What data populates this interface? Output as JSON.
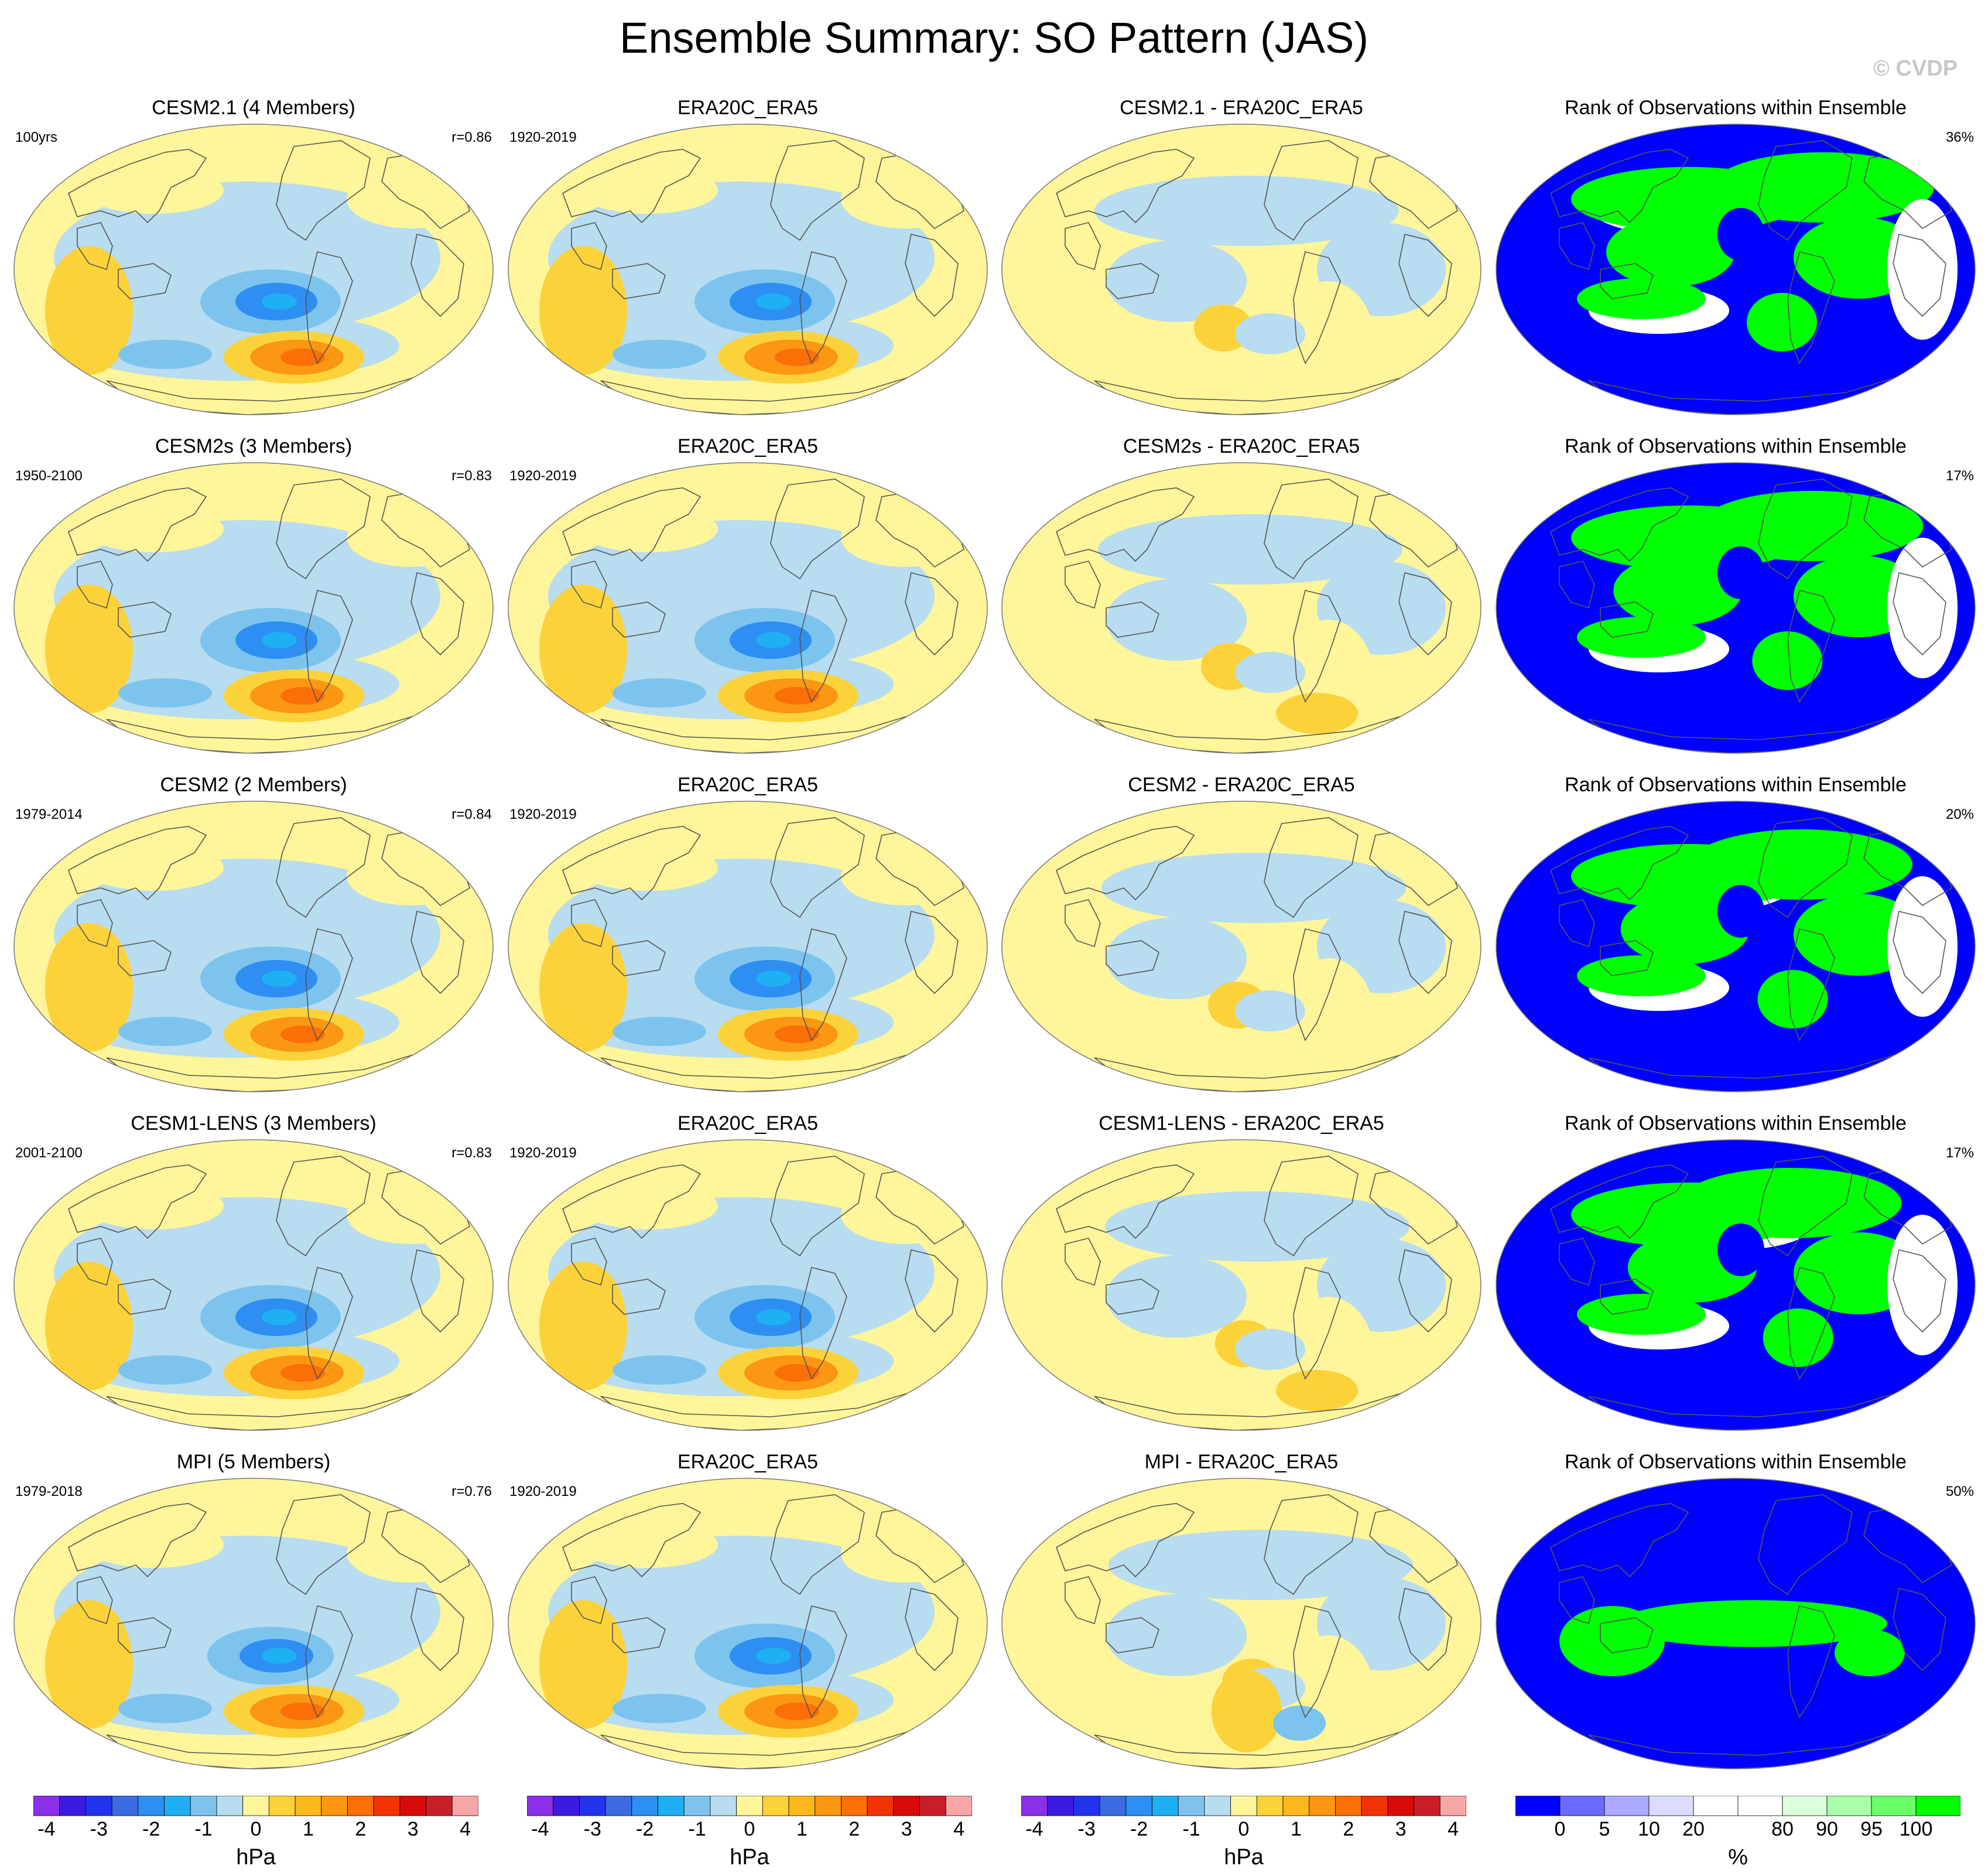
{
  "title": "Ensemble Summary: SO Pattern (JAS)",
  "copyright": "© CVDP",
  "rows": [
    {
      "model": {
        "title": "CESM2.1 (4 Members)",
        "left": "100yrs",
        "right": "r=0.86"
      },
      "obs": {
        "title": "ERA20C_ERA5",
        "left": "1920-2019"
      },
      "diff": {
        "title": "CESM2.1 - ERA20C_ERA5"
      },
      "rank": {
        "title": "Rank of Observations within Ensemble",
        "right": "36%"
      }
    },
    {
      "model": {
        "title": "CESM2s (3 Members)",
        "left": "1950-2100",
        "right": "r=0.83"
      },
      "obs": {
        "title": "ERA20C_ERA5",
        "left": "1920-2019"
      },
      "diff": {
        "title": "CESM2s - ERA20C_ERA5"
      },
      "rank": {
        "title": "Rank of Observations within Ensemble",
        "right": "17%"
      }
    },
    {
      "model": {
        "title": "CESM2 (2 Members)",
        "left": "1979-2014",
        "right": "r=0.84"
      },
      "obs": {
        "title": "ERA20C_ERA5",
        "left": "1920-2019"
      },
      "diff": {
        "title": "CESM2 - ERA20C_ERA5"
      },
      "rank": {
        "title": "Rank of Observations within Ensemble",
        "right": "20%"
      }
    },
    {
      "model": {
        "title": "CESM1-LENS (3 Members)",
        "left": "2001-2100",
        "right": "r=0.83"
      },
      "obs": {
        "title": "ERA20C_ERA5",
        "left": "1920-2019"
      },
      "diff": {
        "title": "CESM1-LENS - ERA20C_ERA5"
      },
      "rank": {
        "title": "Rank of Observations within Ensemble",
        "right": "17%"
      }
    },
    {
      "model": {
        "title": "MPI (5 Members)",
        "left": "1979-2018",
        "right": "r=0.76"
      },
      "obs": {
        "title": "ERA20C_ERA5",
        "left": "1920-2019"
      },
      "diff": {
        "title": "MPI - ERA20C_ERA5"
      },
      "rank": {
        "title": "Rank of Observations within Ensemble",
        "right": "50%"
      }
    }
  ],
  "colorbars": {
    "hpa": {
      "units": "hPa",
      "colors": [
        "#8c2fe8",
        "#3c1ae0",
        "#2233ee",
        "#3c6ae0",
        "#2e8ef2",
        "#1eb0f2",
        "#7cc4ee",
        "#b8dcf0",
        "#fff59a",
        "#fcd23a",
        "#fbb81c",
        "#fb9712",
        "#fb6e08",
        "#f43206",
        "#da0a0a",
        "#c81e28",
        "#f7a6a6"
      ],
      "ticks": [
        "-4",
        "-3",
        "-2",
        "-1",
        "0",
        "1",
        "2",
        "3",
        "4"
      ]
    },
    "rank": {
      "units": "%",
      "colors": [
        "#0000ff",
        "#6a6aff",
        "#aaaaff",
        "#dcdcff",
        "#ffffff",
        "#ffffff",
        "#dcffdc",
        "#aaffaa",
        "#6aff6a",
        "#00ff00"
      ],
      "ticks": [
        "0",
        "5",
        "10",
        "20",
        "80",
        "90",
        "95",
        "100"
      ]
    }
  },
  "legend": {
    "pattern_colors": {
      "neg_light": "#b8dcf0",
      "neg_mid": "#7cc4ee",
      "neg_strong": "#2e8ef2",
      "neg_core": "#1eb0f2",
      "pos_light": "#fff59a",
      "pos_mid": "#fcd23a",
      "pos_strong": "#fb9712",
      "pos_core": "#fb6e08"
    },
    "rank_colors": {
      "low": "#0000ff",
      "mid": "#ffffff",
      "high": "#00ff00"
    }
  }
}
